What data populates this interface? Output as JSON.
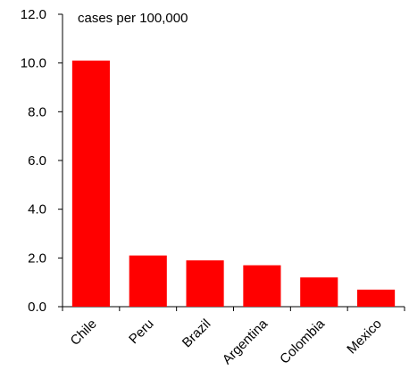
{
  "chart_data": {
    "type": "bar",
    "title": "",
    "unit_label": "cases per 100,000",
    "xlabel": "",
    "ylabel": "",
    "categories": [
      "Chile",
      "Peru",
      "Brazil",
      "Argentina",
      "Colombia",
      "Mexico"
    ],
    "values": [
      10.1,
      2.1,
      1.9,
      1.7,
      1.2,
      0.7
    ],
    "ylim": [
      0,
      12
    ],
    "yticks": [
      0,
      2,
      4,
      6,
      8,
      10,
      12
    ],
    "ytick_labels": [
      "0.0",
      "2.0",
      "4.0",
      "6.0",
      "8.0",
      "10.0",
      "12.0"
    ],
    "grid": false,
    "legend": "none",
    "bar_color": "#ff0000"
  }
}
